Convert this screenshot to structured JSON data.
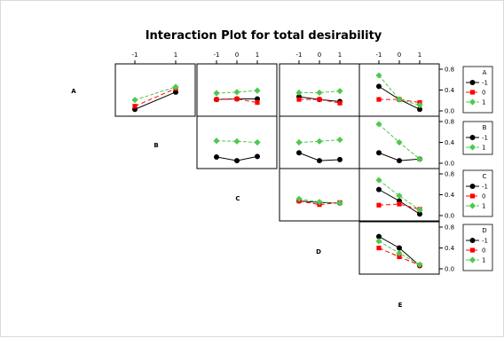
{
  "chart_data": {
    "type": "line",
    "title": "Interaction Plot for total desirability",
    "levels3": [
      "-1",
      "0",
      "1"
    ],
    "levels2": [
      "-1",
      "1"
    ],
    "ylim": [
      0,
      0.8
    ],
    "yticks": [
      "0.0",
      "0.4",
      "0.8"
    ],
    "factors": [
      "A",
      "B",
      "C",
      "D",
      "E"
    ],
    "colors": {
      "-1": "#000000",
      "0": "#ff0000",
      "1": "#4ec94e"
    },
    "legends": [
      {
        "factor": "A",
        "levels": [
          "-1",
          "0",
          "1"
        ]
      },
      {
        "factor": "B",
        "levels": [
          "-1",
          "1"
        ]
      },
      {
        "factor": "C",
        "levels": [
          "-1",
          "0",
          "1"
        ]
      },
      {
        "factor": "D",
        "levels": [
          "-1",
          "0",
          "1"
        ]
      }
    ],
    "panels": [
      {
        "row": "A",
        "col": "B",
        "x": [
          "-1",
          "1"
        ],
        "series": [
          {
            "level": "-1",
            "values": [
              0.03,
              0.36
            ]
          },
          {
            "level": "0",
            "values": [
              0.09,
              0.43
            ]
          },
          {
            "level": "1",
            "values": [
              0.21,
              0.46
            ]
          }
        ]
      },
      {
        "row": "A",
        "col": "C",
        "x": [
          "-1",
          "0",
          "1"
        ],
        "series": [
          {
            "level": "-1",
            "values": [
              0.22,
              0.23,
              0.23
            ]
          },
          {
            "level": "0",
            "values": [
              0.22,
              0.23,
              0.16
            ]
          },
          {
            "level": "1",
            "values": [
              0.34,
              0.36,
              0.39
            ]
          }
        ]
      },
      {
        "row": "A",
        "col": "D",
        "x": [
          "-1",
          "0",
          "1"
        ],
        "series": [
          {
            "level": "-1",
            "values": [
              0.27,
              0.22,
              0.18
            ]
          },
          {
            "level": "0",
            "values": [
              0.22,
              0.22,
              0.15
            ]
          },
          {
            "level": "1",
            "values": [
              0.35,
              0.35,
              0.38
            ]
          }
        ]
      },
      {
        "row": "A",
        "col": "E",
        "x": [
          "-1",
          "0",
          "1"
        ],
        "series": [
          {
            "level": "-1",
            "values": [
              0.47,
              0.22,
              0.03
            ]
          },
          {
            "level": "0",
            "values": [
              0.22,
              0.22,
              0.16
            ]
          },
          {
            "level": "1",
            "values": [
              0.68,
              0.22,
              0.11
            ]
          }
        ]
      },
      {
        "row": "B",
        "col": "C",
        "x": [
          "-1",
          "0",
          "1"
        ],
        "series": [
          {
            "level": "-1",
            "values": [
              0.12,
              0.05,
              0.13
            ]
          },
          {
            "level": "1",
            "values": [
              0.43,
              0.42,
              0.4
            ]
          }
        ]
      },
      {
        "row": "B",
        "col": "D",
        "x": [
          "-1",
          "0",
          "1"
        ],
        "series": [
          {
            "level": "-1",
            "values": [
              0.2,
              0.05,
              0.07
            ]
          },
          {
            "level": "1",
            "values": [
              0.4,
              0.42,
              0.45
            ]
          }
        ]
      },
      {
        "row": "B",
        "col": "E",
        "x": [
          "-1",
          "0",
          "1"
        ],
        "series": [
          {
            "level": "-1",
            "values": [
              0.2,
              0.05,
              0.08
            ]
          },
          {
            "level": "1",
            "values": [
              0.75,
              0.4,
              0.08
            ]
          }
        ]
      },
      {
        "row": "C",
        "col": "D",
        "x": [
          "-1",
          "0",
          "1"
        ],
        "series": [
          {
            "level": "-1",
            "values": [
              0.28,
              0.25,
              0.24
            ]
          },
          {
            "level": "0",
            "values": [
              0.28,
              0.21,
              0.25
            ]
          },
          {
            "level": "1",
            "values": [
              0.32,
              0.26,
              0.24
            ]
          }
        ]
      },
      {
        "row": "C",
        "col": "E",
        "x": [
          "-1",
          "0",
          "1"
        ],
        "series": [
          {
            "level": "-1",
            "values": [
              0.5,
              0.28,
              0.03
            ]
          },
          {
            "level": "0",
            "values": [
              0.2,
              0.22,
              0.12
            ]
          },
          {
            "level": "1",
            "values": [
              0.68,
              0.38,
              0.11
            ]
          }
        ]
      },
      {
        "row": "D",
        "col": "E",
        "x": [
          "-1",
          "0",
          "1"
        ],
        "series": [
          {
            "level": "-1",
            "values": [
              0.62,
              0.4,
              0.06
            ]
          },
          {
            "level": "0",
            "values": [
              0.4,
              0.23,
              0.07
            ]
          },
          {
            "level": "1",
            "values": [
              0.53,
              0.3,
              0.08
            ]
          }
        ]
      }
    ]
  }
}
